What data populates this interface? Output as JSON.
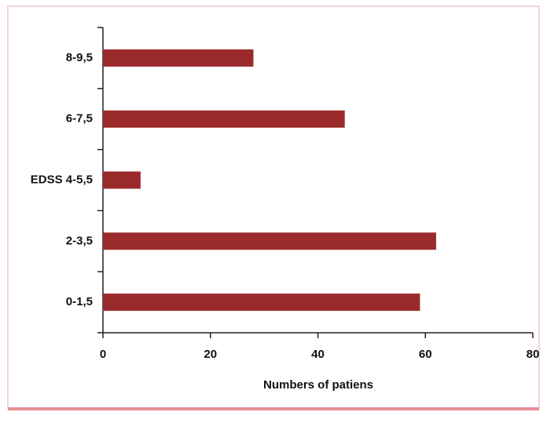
{
  "chart_data": {
    "type": "bar",
    "orientation": "horizontal",
    "categories": [
      "0-1,5",
      "2-3,5",
      "EDSS 4-5,5",
      "6-7,5",
      "8-9,5"
    ],
    "values": [
      59,
      62,
      7,
      45,
      28
    ],
    "color": "#9b2a2c",
    "xlabel": "Numbers of patiens",
    "xlim": [
      0,
      80
    ],
    "xticks": [
      0,
      20,
      40,
      60,
      80
    ],
    "grid": false
  }
}
